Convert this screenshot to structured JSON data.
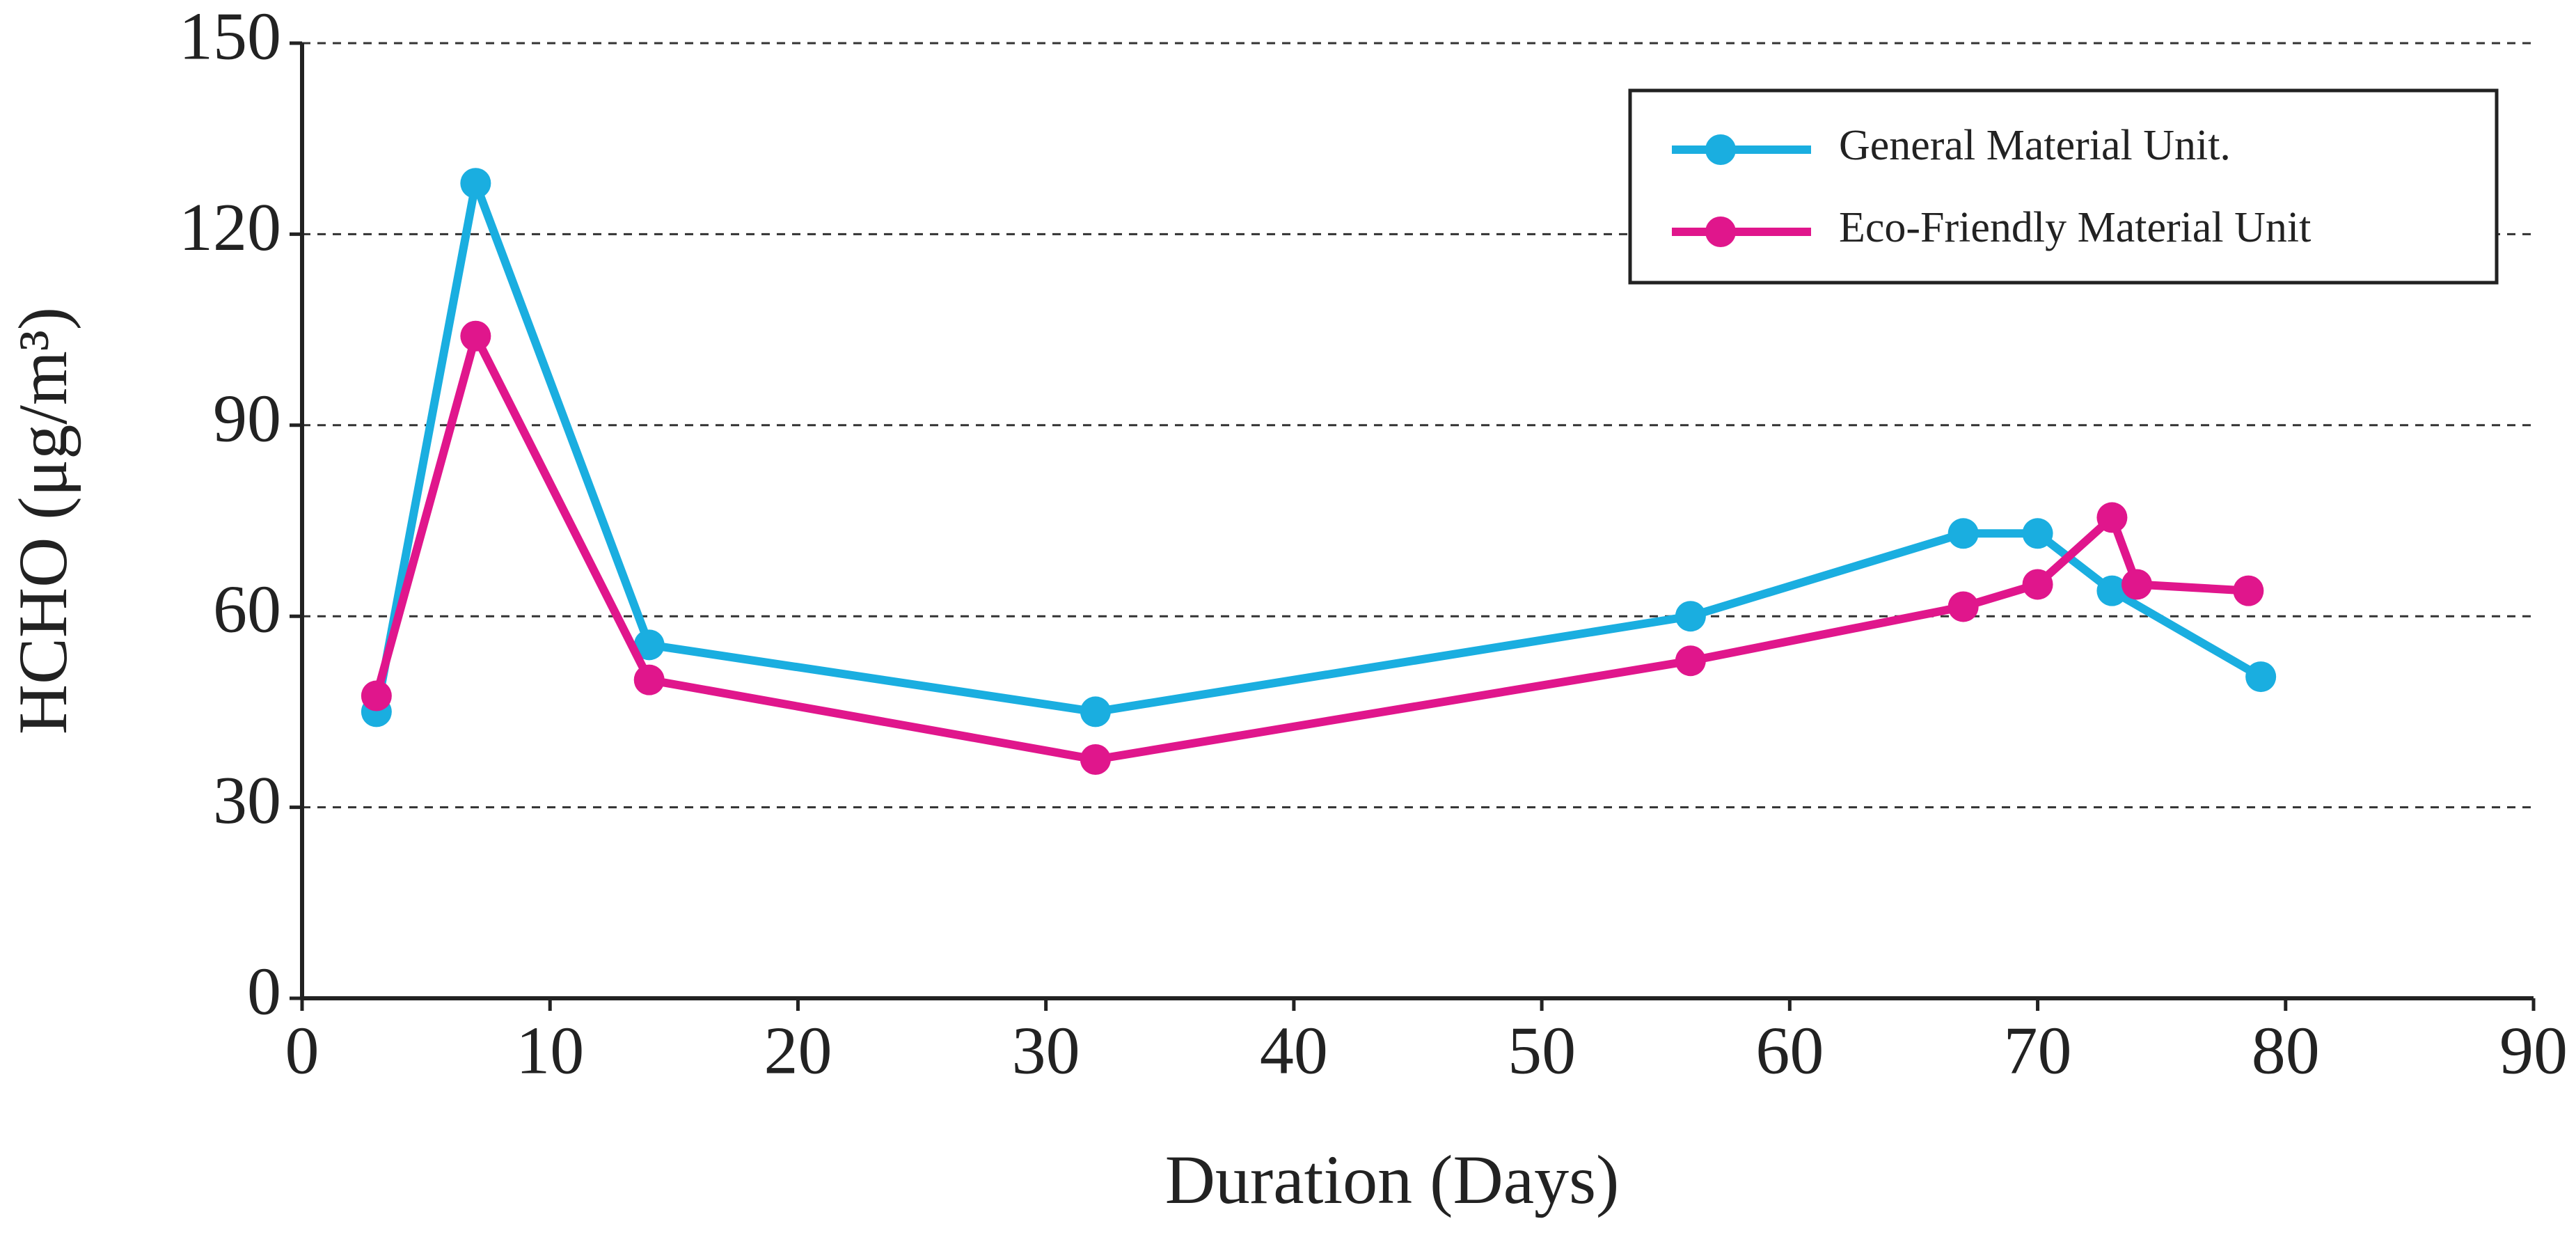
{
  "chart_data": {
    "type": "line",
    "xlabel": "Duration (Days)",
    "ylabel": "HCHO (μg/m³)",
    "xlim": [
      0,
      90
    ],
    "xticks": [
      0,
      10,
      20,
      30,
      40,
      50,
      60,
      70,
      80,
      90
    ],
    "ylim": [
      0,
      150
    ],
    "yticks": [
      0,
      30,
      60,
      90,
      120,
      150
    ],
    "grid": true,
    "legend": "upper right",
    "series": [
      {
        "name": "General Material Unit.",
        "color": "#1aaee0",
        "x": [
          3,
          7,
          14,
          32,
          56,
          67,
          70,
          73,
          79
        ],
        "values": [
          45,
          128,
          55.5,
          45,
          60,
          73,
          73,
          64,
          50.5
        ]
      },
      {
        "name": "Eco-Friendly Material Unit",
        "color": "#e0168c",
        "x": [
          3,
          7,
          14,
          32,
          56,
          67,
          70,
          73,
          74,
          78.5
        ],
        "values": [
          47.5,
          104,
          50,
          37.5,
          53,
          61.5,
          65,
          75.5,
          65,
          64
        ]
      }
    ]
  }
}
